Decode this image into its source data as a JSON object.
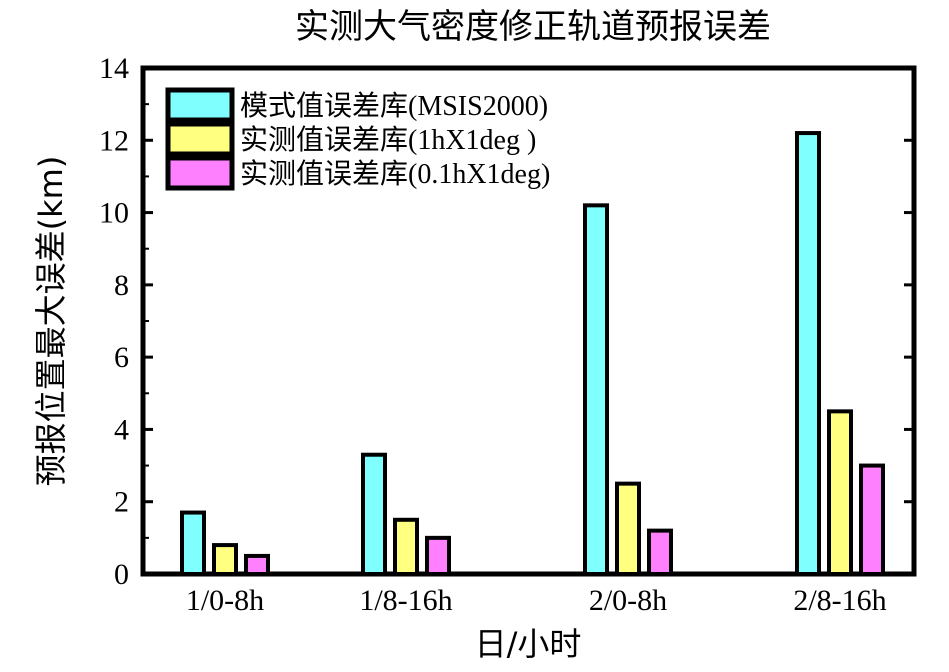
{
  "chart_data": {
    "type": "bar",
    "title": "实测大气密度修正轨道预报误差",
    "xlabel": "日/小时",
    "ylabel": "预报位置最大误差(km)",
    "categories": [
      "1/0-8h",
      "1/8-16h",
      "2/0-8h",
      "2/8-16h"
    ],
    "series": [
      {
        "name": "模式值误差库(MSIS2000)",
        "color": "#80ffff",
        "values": [
          1.7,
          3.3,
          10.2,
          12.2
        ]
      },
      {
        "name": "实测值误差库(1hX1deg )",
        "color": "#ffff80",
        "values": [
          0.8,
          1.5,
          2.5,
          4.5
        ]
      },
      {
        "name": "实测值误差库(0.1hX1deg)",
        "color": "#ff80ff",
        "values": [
          0.5,
          1.0,
          1.2,
          3.0
        ]
      }
    ],
    "ylim": [
      0,
      14
    ],
    "yticks": [
      0,
      2,
      4,
      6,
      8,
      10,
      12,
      14
    ],
    "grid": false,
    "legend_position": "top-left"
  }
}
